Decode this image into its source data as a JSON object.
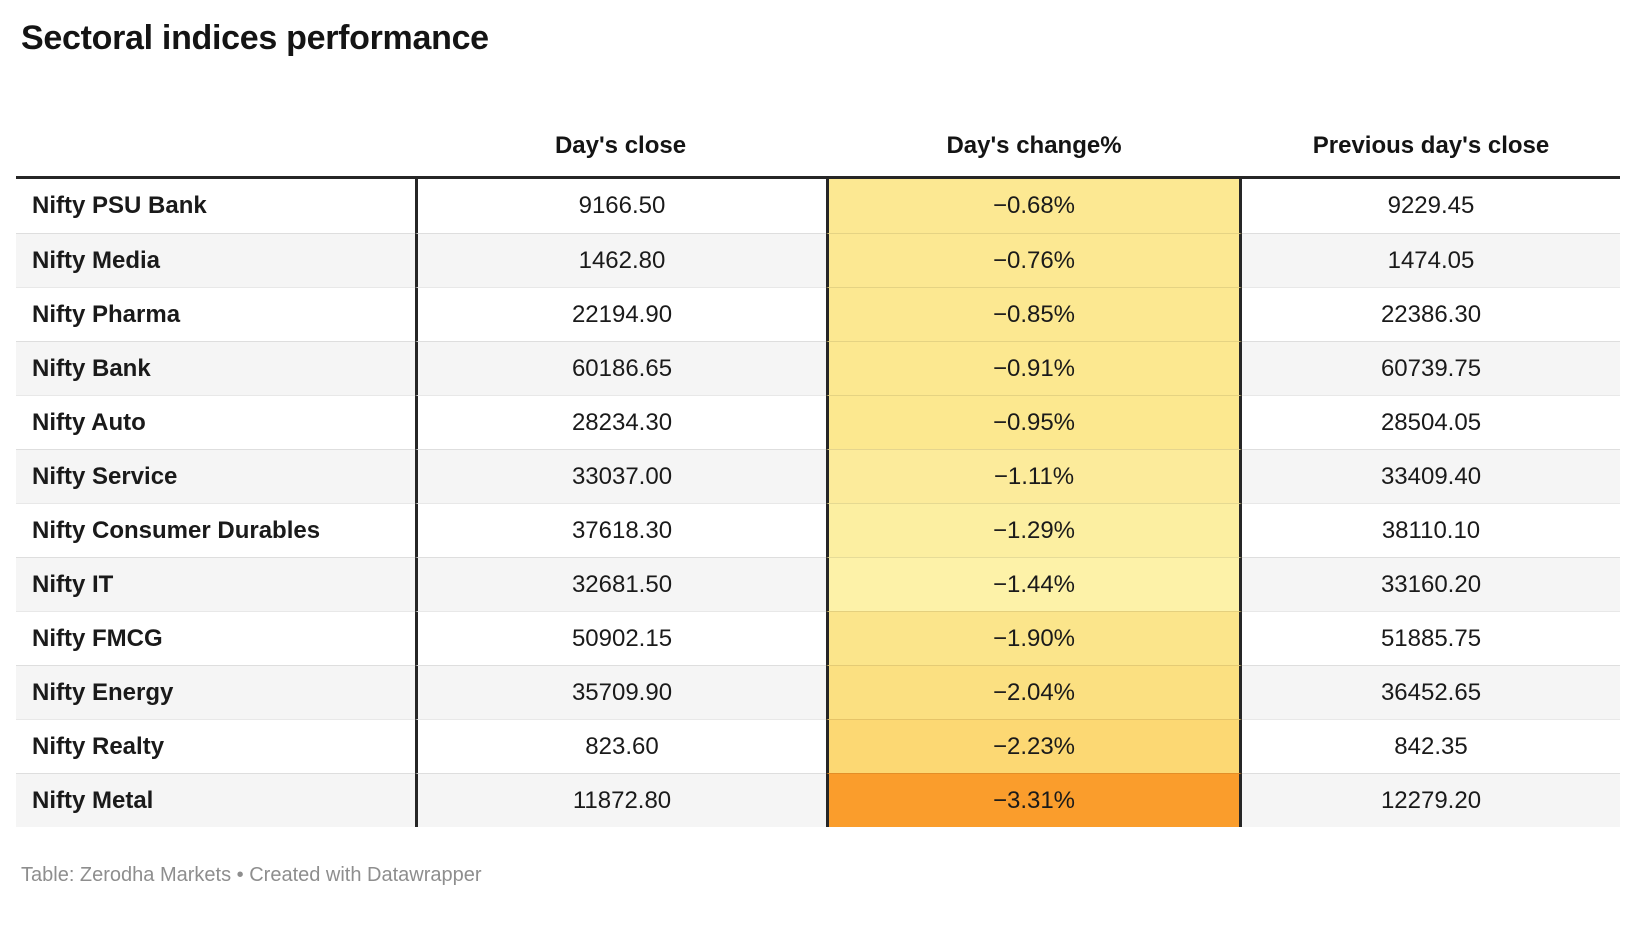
{
  "title": "Sectoral indices performance",
  "footer": "Table: Zerodha Markets • Created with Datawrapper",
  "colors": {
    "border_dark": "#262626",
    "row_alt_bg": "#f5f5f5",
    "footer_text": "#8e8e8e",
    "heatmap_min": "#FDF2A8",
    "heatmap_max": "#FA9D2C"
  },
  "chart_data": {
    "type": "table",
    "title": "Sectoral indices performance",
    "columns": [
      "",
      "Day's close",
      "Day's change%",
      "Previous day's close"
    ],
    "headers": {
      "close": "Day's close",
      "change": "Day's change%",
      "prev": "Previous day's close"
    },
    "heatmap_column": "Day's change%",
    "rows": [
      {
        "label": "Nifty PSU Bank",
        "close": "9166.50",
        "change": "−0.68%",
        "prev": "9229.45",
        "change_value": -0.68,
        "cell_color": "#FCE892"
      },
      {
        "label": "Nifty Media",
        "close": "1462.80",
        "change": "−0.76%",
        "prev": "1474.05",
        "change_value": -0.76,
        "cell_color": "#FCE892"
      },
      {
        "label": "Nifty Pharma",
        "close": "22194.90",
        "change": "−0.85%",
        "prev": "22386.30",
        "change_value": -0.85,
        "cell_color": "#FCE891"
      },
      {
        "label": "Nifty Bank",
        "close": "60186.65",
        "change": "−0.91%",
        "prev": "60739.75",
        "change_value": -0.91,
        "cell_color": "#FCE890"
      },
      {
        "label": "Nifty Auto",
        "close": "28234.30",
        "change": "−0.95%",
        "prev": "28504.05",
        "change_value": -0.95,
        "cell_color": "#FCE88F"
      },
      {
        "label": "Nifty Service",
        "close": "33037.00",
        "change": "−1.11%",
        "prev": "33409.40",
        "change_value": -1.11,
        "cell_color": "#FCEB9B"
      },
      {
        "label": "Nifty Consumer Durables",
        "close": "37618.30",
        "change": "−1.29%",
        "prev": "38110.10",
        "change_value": -1.29,
        "cell_color": "#FCEFA1"
      },
      {
        "label": "Nifty IT",
        "close": "32681.50",
        "change": "−1.44%",
        "prev": "33160.20",
        "change_value": -1.44,
        "cell_color": "#FDF2A8"
      },
      {
        "label": "Nifty FMCG",
        "close": "50902.15",
        "change": "−1.90%",
        "prev": "51885.75",
        "change_value": -1.9,
        "cell_color": "#FBE58B"
      },
      {
        "label": "Nifty Energy",
        "close": "35709.90",
        "change": "−2.04%",
        "prev": "36452.65",
        "change_value": -2.04,
        "cell_color": "#FBE081"
      },
      {
        "label": "Nifty Realty",
        "close": "823.60",
        "change": "−2.23%",
        "prev": "842.35",
        "change_value": -2.23,
        "cell_color": "#FCD873"
      },
      {
        "label": "Nifty Metal",
        "close": "11872.80",
        "change": "−3.31%",
        "prev": "12279.20",
        "change_value": -3.31,
        "cell_color": "#FA9D2C"
      }
    ]
  }
}
